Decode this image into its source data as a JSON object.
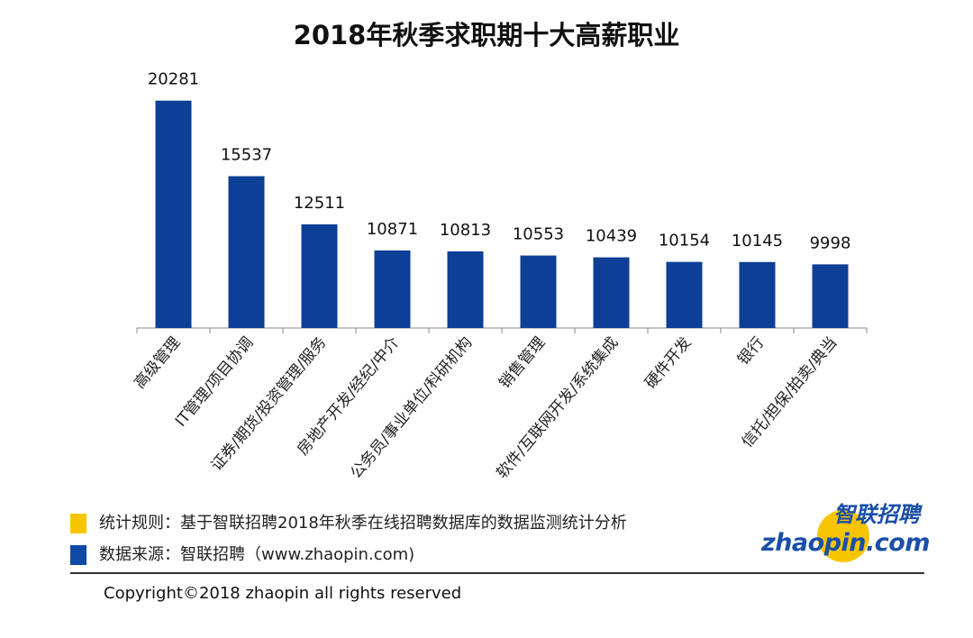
{
  "chart_data": {
    "type": "bar",
    "title": "2018年秋季求职期十大高薪职业",
    "categories": [
      "高级管理",
      "IT管理/项目协调",
      "证券/期货/投资管理/服务",
      "房地产开发/经纪/中介",
      "公务员/事业单位/科研机构",
      "销售管理",
      "软件/互联网开发/系统集成",
      "硬件开发",
      "银行",
      "信托/担保/拍卖/典当"
    ],
    "values": [
      20281,
      15537,
      12511,
      10871,
      10813,
      10553,
      10439,
      10154,
      10145,
      9998
    ],
    "value_labels": [
      "20281",
      "15537",
      "12511",
      "10871",
      "10813",
      "10553",
      "10439",
      "10154",
      "10145",
      "9998"
    ],
    "xlabel": "",
    "ylabel": "",
    "ylim": [
      6000,
      21000
    ],
    "grid": false,
    "bar_color": "#0d3f96"
  },
  "legend": {
    "rule_text": "统计规则：基于智联招聘2018年秋季在线招聘数据库的数据监测统计分析",
    "source_text": "数据来源：智联招聘（www.zhaopin.com)",
    "rule_color": "#f7c500",
    "source_color": "#0d4aa6"
  },
  "logo": {
    "cn": "智联招聘",
    "en": "zhaopin.com"
  },
  "footer": {
    "copyright": "Copyright©2018 zhaopin all rights reserved"
  }
}
